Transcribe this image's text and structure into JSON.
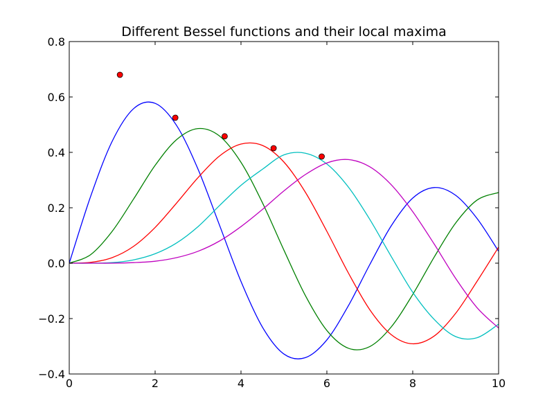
{
  "chart_data": {
    "type": "line",
    "title": "Different Bessel functions and their local maxima",
    "xlabel": "",
    "ylabel": "",
    "xlim": [
      0,
      10
    ],
    "ylim": [
      -0.4,
      0.8
    ],
    "grid": false,
    "legend": "none",
    "x_ticks": [
      0,
      2,
      4,
      6,
      8,
      10
    ],
    "y_ticks": [
      -0.4,
      -0.2,
      0.0,
      0.2,
      0.4,
      0.6,
      0.8
    ],
    "x_tick_labels": [
      "0",
      "2",
      "4",
      "6",
      "8",
      "10"
    ],
    "y_tick_labels": [
      "−0.4",
      "−0.2",
      "0.0",
      "0.2",
      "0.4",
      "0.6",
      "0.8"
    ],
    "x": [
      0.0,
      0.5,
      1.0,
      1.5,
      2.0,
      2.5,
      3.0,
      3.5,
      4.0,
      4.5,
      5.0,
      5.5,
      6.0,
      6.5,
      7.0,
      7.5,
      8.0,
      8.5,
      9.0,
      9.5,
      10.0
    ],
    "series": [
      {
        "color": "#0000ff",
        "values": [
          0.0,
          0.242,
          0.44,
          0.558,
          0.577,
          0.497,
          0.339,
          0.137,
          -0.066,
          -0.231,
          -0.328,
          -0.341,
          -0.277,
          -0.154,
          -0.005,
          0.135,
          0.235,
          0.273,
          0.245,
          0.161,
          0.043
        ]
      },
      {
        "color": "#008000",
        "values": [
          0.0,
          0.031,
          0.115,
          0.232,
          0.353,
          0.446,
          0.486,
          0.459,
          0.364,
          0.218,
          0.047,
          -0.117,
          -0.243,
          -0.307,
          -0.301,
          -0.23,
          -0.113,
          0.022,
          0.145,
          0.228,
          0.255
        ]
      },
      {
        "color": "#ff0000",
        "values": [
          0.0,
          0.003,
          0.02,
          0.061,
          0.129,
          0.217,
          0.309,
          0.387,
          0.43,
          0.425,
          0.365,
          0.256,
          0.115,
          -0.035,
          -0.168,
          -0.258,
          -0.291,
          -0.263,
          -0.181,
          -0.065,
          0.058
        ]
      },
      {
        "color": "#00bfbf",
        "values": [
          0.0,
          0.0,
          0.002,
          0.012,
          0.034,
          0.073,
          0.132,
          0.208,
          0.281,
          0.339,
          0.391,
          0.397,
          0.358,
          0.275,
          0.158,
          0.024,
          -0.105,
          -0.203,
          -0.265,
          -0.269,
          -0.22
        ]
      },
      {
        "color": "#bf00bf",
        "values": [
          0.0,
          0.0,
          0.0,
          0.002,
          0.007,
          0.02,
          0.043,
          0.08,
          0.132,
          0.194,
          0.261,
          0.32,
          0.362,
          0.374,
          0.348,
          0.283,
          0.186,
          0.069,
          -0.055,
          -0.161,
          -0.234
        ]
      }
    ],
    "markers": {
      "color": "#ff0000",
      "points": [
        {
          "x": 1.18,
          "y": 0.68
        },
        {
          "x": 2.47,
          "y": 0.525
        },
        {
          "x": 3.62,
          "y": 0.458
        },
        {
          "x": 4.76,
          "y": 0.415
        },
        {
          "x": 5.88,
          "y": 0.385
        }
      ]
    }
  }
}
